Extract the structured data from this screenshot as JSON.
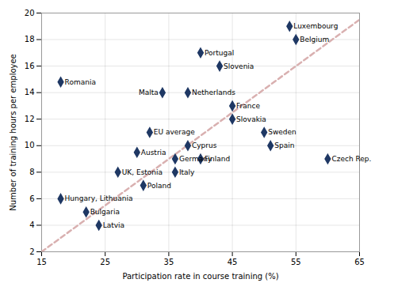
{
  "chart_data": {
    "type": "scatter",
    "xlabel": "Participation rate in course training (%)",
    "ylabel": "Number of training hours per employee",
    "labels": [
      "Romania",
      "Hungary, Lithuania",
      "Bulgaria",
      "Latvia",
      "UK, Estonia",
      "Austria",
      "EU average",
      "Poland",
      "Malta",
      "Germany",
      "Italy",
      "Cyprus",
      "Netherlands",
      "Finland",
      "Portugal",
      "Slovenia",
      "Slovakia",
      "France",
      "Sweden",
      "Spain",
      "Luxembourg",
      "Belgium",
      "Czech Rep."
    ],
    "x": [
      18,
      18,
      22,
      24,
      27,
      30,
      32,
      31,
      34,
      36,
      36,
      38,
      38,
      40,
      40,
      43,
      45,
      45,
      50,
      51,
      54,
      55,
      60
    ],
    "values": [
      14.8,
      6.0,
      5.0,
      4.0,
      8.0,
      9.5,
      11.0,
      7.0,
      14.0,
      9.0,
      8.0,
      10.0,
      14.0,
      9.0,
      17.0,
      16.0,
      12.0,
      13.0,
      11.0,
      10.0,
      19.0,
      18.0,
      9.0
    ],
    "color": "#1F3864",
    "marker": "diamond",
    "trendline": {
      "x": [
        15,
        65
      ],
      "y": [
        2.0,
        19.5
      ],
      "color": "#D9B0B0",
      "line_style": "dashed"
    },
    "xlim": [
      15,
      65
    ],
    "ylim": [
      2,
      20
    ],
    "xticks": [
      15,
      25,
      35,
      45,
      55,
      65
    ],
    "yticks": [
      2,
      4,
      6,
      8,
      10,
      12,
      14,
      16,
      18,
      20
    ],
    "grid": true
  }
}
